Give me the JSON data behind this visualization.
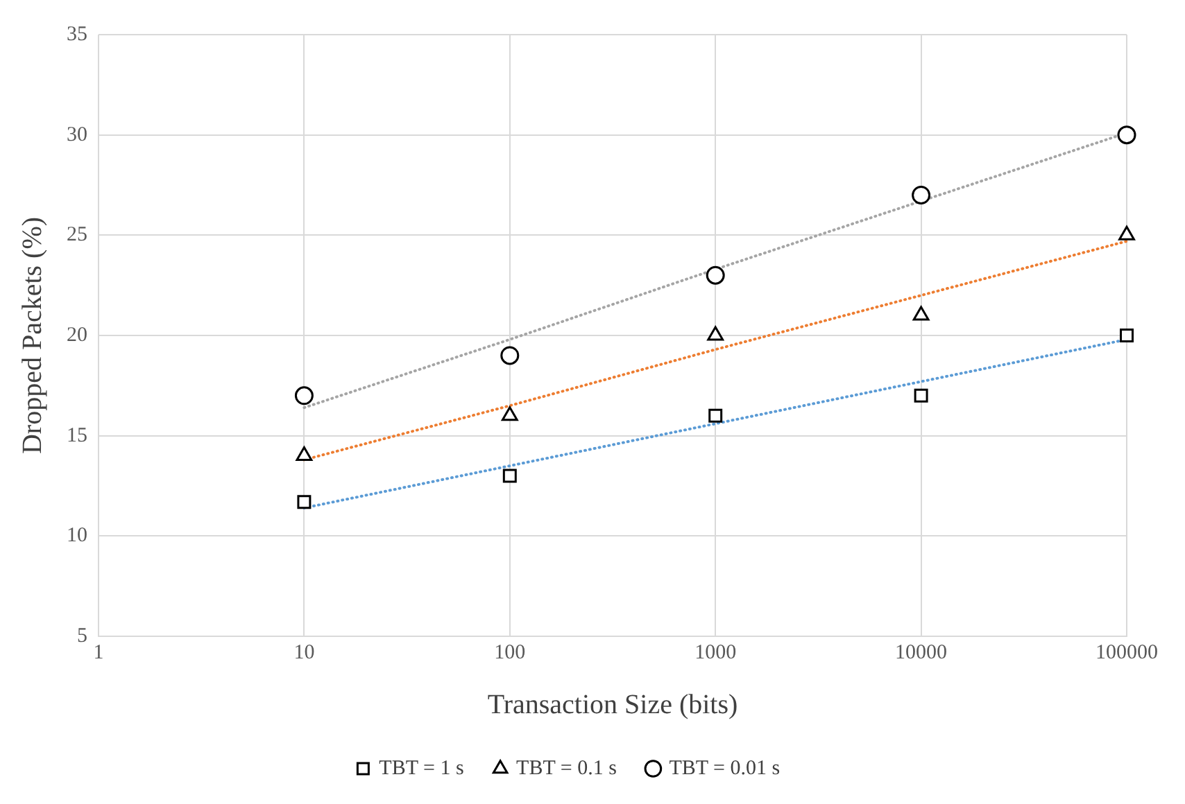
{
  "chart_data": {
    "type": "scatter",
    "xlabel": "Transaction Size (bits)",
    "ylabel": "Dropped Packets (%)",
    "x": [
      10,
      100,
      1000,
      10000,
      100000
    ],
    "series": [
      {
        "name": "TBT = 1 s",
        "color": "#000000",
        "marker": "square",
        "values": [
          11.7,
          13,
          16,
          17,
          20
        ]
      },
      {
        "name": "TBT = 0.1 s",
        "color": "#000000",
        "marker": "triangle",
        "values": [
          14,
          16,
          20,
          21,
          25
        ]
      },
      {
        "name": "TBT = 0.01 s",
        "color": "#000000",
        "marker": "circle",
        "values": [
          17,
          19,
          23,
          27,
          30
        ]
      },
      {
        "type": "line",
        "color": "#5b9bd5",
        "line_style": "dotted",
        "marker": "none",
        "values": [
          11.4,
          13.5,
          15.6,
          17.7,
          19.8
        ]
      },
      {
        "type": "line",
        "color": "#ed7d31",
        "line_style": "dotted",
        "marker": "none",
        "values": [
          13.8,
          16.5,
          19.3,
          22.0,
          24.7
        ]
      },
      {
        "type": "line",
        "color": "#a5a5a5",
        "line_style": "dotted",
        "marker": "none",
        "values": [
          16.4,
          19.8,
          23.3,
          26.7,
          30.1
        ]
      }
    ],
    "log": "x",
    "xlim": [
      1,
      100000
    ],
    "xticks": [
      1,
      10,
      100,
      1000,
      10000,
      100000
    ],
    "ylim": [
      5,
      35
    ],
    "yticks": [
      5,
      10,
      15,
      20,
      25,
      30,
      35
    ],
    "grid": true,
    "legend": "bottom"
  }
}
